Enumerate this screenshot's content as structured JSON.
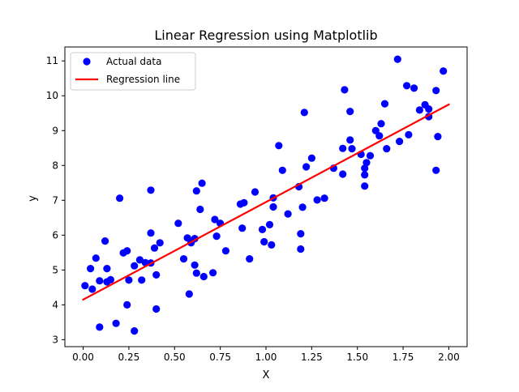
{
  "chart_data": {
    "type": "scatter",
    "title": "Linear Regression using Matplotlib",
    "xlabel": "X",
    "ylabel": "y",
    "xlim": [
      -0.1,
      2.1
    ],
    "ylim": [
      2.8,
      11.4
    ],
    "xticks": [
      "0.00",
      "0.25",
      "0.50",
      "0.75",
      "1.00",
      "1.25",
      "1.50",
      "1.75",
      "2.00"
    ],
    "yticks": [
      "3",
      "4",
      "5",
      "6",
      "7",
      "8",
      "9",
      "10",
      "11"
    ],
    "grid": false,
    "legend": {
      "placement": "upper-left",
      "entries": [
        {
          "label": "Actual data",
          "marker": "circle",
          "color": "#0000ff"
        },
        {
          "label": "Regression line",
          "marker": "line",
          "color": "#ff0000"
        }
      ]
    },
    "series": [
      {
        "name": "Actual data",
        "kind": "scatter",
        "color": "#0000ff",
        "points": [
          [
            0.01,
            4.55
          ],
          [
            0.04,
            5.04
          ],
          [
            0.05,
            4.45
          ],
          [
            0.07,
            5.34
          ],
          [
            0.09,
            3.36
          ],
          [
            0.09,
            4.69
          ],
          [
            0.12,
            5.83
          ],
          [
            0.13,
            5.04
          ],
          [
            0.13,
            4.66
          ],
          [
            0.15,
            4.72
          ],
          [
            0.18,
            3.47
          ],
          [
            0.2,
            7.06
          ],
          [
            0.22,
            5.49
          ],
          [
            0.24,
            5.55
          ],
          [
            0.24,
            4.0
          ],
          [
            0.25,
            4.71
          ],
          [
            0.28,
            5.12
          ],
          [
            0.28,
            3.25
          ],
          [
            0.31,
            5.29
          ],
          [
            0.32,
            4.71
          ],
          [
            0.34,
            5.21
          ],
          [
            0.37,
            6.06
          ],
          [
            0.37,
            5.2
          ],
          [
            0.37,
            7.29
          ],
          [
            0.39,
            5.63
          ],
          [
            0.4,
            4.86
          ],
          [
            0.4,
            3.88
          ],
          [
            0.42,
            5.78
          ],
          [
            0.52,
            6.34
          ],
          [
            0.55,
            5.32
          ],
          [
            0.57,
            5.92
          ],
          [
            0.58,
            4.31
          ],
          [
            0.59,
            5.78
          ],
          [
            0.61,
            5.14
          ],
          [
            0.61,
            5.9
          ],
          [
            0.62,
            7.27
          ],
          [
            0.62,
            4.91
          ],
          [
            0.64,
            6.74
          ],
          [
            0.65,
            7.49
          ],
          [
            0.66,
            4.81
          ],
          [
            0.71,
            4.92
          ],
          [
            0.72,
            6.45
          ],
          [
            0.73,
            5.97
          ],
          [
            0.75,
            6.34
          ],
          [
            0.78,
            5.55
          ],
          [
            0.86,
            6.89
          ],
          [
            0.87,
            6.2
          ],
          [
            0.88,
            6.93
          ],
          [
            0.91,
            5.32
          ],
          [
            0.94,
            7.24
          ],
          [
            0.98,
            6.16
          ],
          [
            0.99,
            5.81
          ],
          [
            1.02,
            6.3
          ],
          [
            1.03,
            5.72
          ],
          [
            1.04,
            6.81
          ],
          [
            1.04,
            7.07
          ],
          [
            1.07,
            8.57
          ],
          [
            1.09,
            7.86
          ],
          [
            1.12,
            6.61
          ],
          [
            1.18,
            7.39
          ],
          [
            1.19,
            6.04
          ],
          [
            1.19,
            5.6
          ],
          [
            1.2,
            6.8
          ],
          [
            1.21,
            9.52
          ],
          [
            1.22,
            7.96
          ],
          [
            1.25,
            8.21
          ],
          [
            1.28,
            7.01
          ],
          [
            1.32,
            7.06
          ],
          [
            1.37,
            7.92
          ],
          [
            1.42,
            8.49
          ],
          [
            1.42,
            7.75
          ],
          [
            1.43,
            10.17
          ],
          [
            1.46,
            8.73
          ],
          [
            1.46,
            9.55
          ],
          [
            1.47,
            8.48
          ],
          [
            1.52,
            8.32
          ],
          [
            1.54,
            7.92
          ],
          [
            1.54,
            7.73
          ],
          [
            1.54,
            7.41
          ],
          [
            1.55,
            8.08
          ],
          [
            1.57,
            8.28
          ],
          [
            1.6,
            9.0
          ],
          [
            1.62,
            8.85
          ],
          [
            1.63,
            9.2
          ],
          [
            1.65,
            9.77
          ],
          [
            1.66,
            8.48
          ],
          [
            1.72,
            11.05
          ],
          [
            1.73,
            8.69
          ],
          [
            1.77,
            10.29
          ],
          [
            1.78,
            8.88
          ],
          [
            1.81,
            10.22
          ],
          [
            1.84,
            9.59
          ],
          [
            1.87,
            9.74
          ],
          [
            1.89,
            9.62
          ],
          [
            1.89,
            9.4
          ],
          [
            1.93,
            10.15
          ],
          [
            1.93,
            7.86
          ],
          [
            1.94,
            8.83
          ],
          [
            1.97,
            10.71
          ]
        ]
      },
      {
        "name": "Regression line",
        "kind": "line",
        "color": "#ff0000",
        "points": [
          [
            0.0,
            4.15
          ],
          [
            2.0,
            9.75
          ]
        ]
      }
    ]
  }
}
